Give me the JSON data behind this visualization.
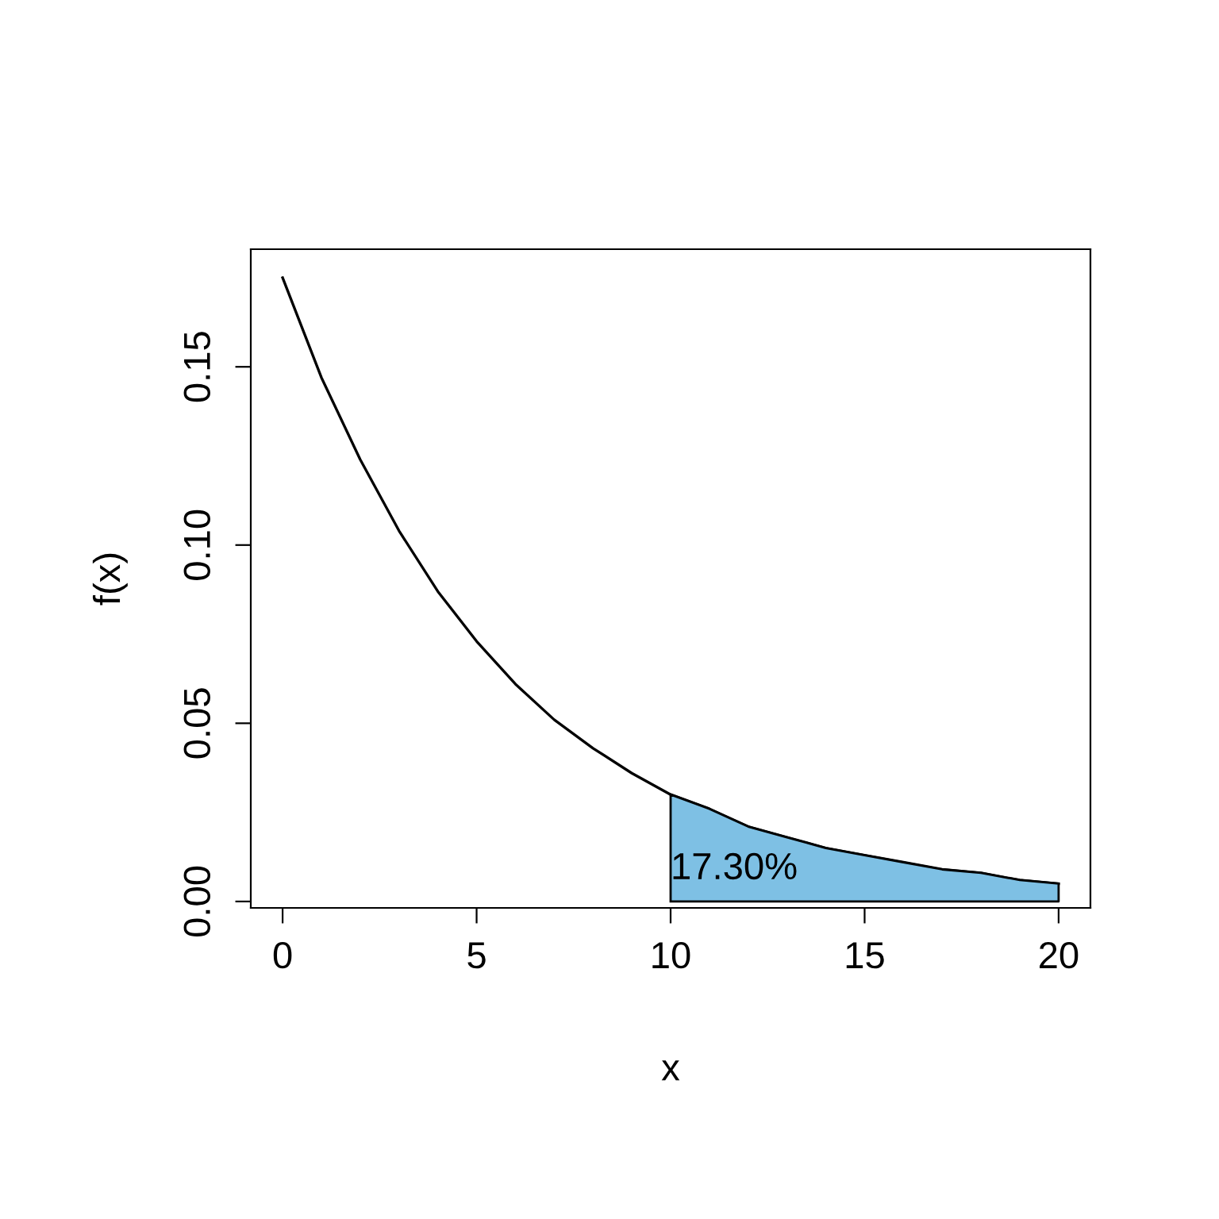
{
  "chart_data": {
    "type": "line",
    "xlabel": "x",
    "ylabel": "f(x)",
    "xlim": [
      -0.82,
      20.82
    ],
    "ylim": [
      -0.0018,
      0.183
    ],
    "xticks": [
      0,
      5,
      10,
      15,
      20
    ],
    "yticks": [
      {
        "value": 0,
        "label": "0.00"
      },
      {
        "value": 0.05,
        "label": "0.05"
      },
      {
        "value": 0.1,
        "label": "0.10"
      },
      {
        "value": 0.15,
        "label": "0.15"
      }
    ],
    "grid": false,
    "legend": false,
    "series": [
      {
        "color": "#000000",
        "x": [
          0,
          1,
          2,
          3,
          4,
          5,
          6,
          7,
          8,
          9,
          10,
          11,
          12,
          13,
          14,
          15,
          16,
          17,
          18,
          19,
          20
        ],
        "values": [
          0.175,
          0.147,
          0.124,
          0.104,
          0.087,
          0.073,
          0.061,
          0.051,
          0.043,
          0.036,
          0.03,
          0.026,
          0.021,
          0.018,
          0.015,
          0.013,
          0.011,
          0.009,
          0.008,
          0.006,
          0.005
        ]
      },
      {
        "type": "area",
        "color": "#7ec0e4",
        "x": [
          10,
          11,
          12,
          13,
          14,
          15,
          16,
          17,
          18,
          19,
          20
        ],
        "values": [
          0.03,
          0.026,
          0.021,
          0.018,
          0.015,
          0.013,
          0.011,
          0.009,
          0.008,
          0.006,
          0.005
        ]
      }
    ],
    "annotations": [
      {
        "text": "17.30%",
        "x": 10,
        "y": 0.009
      }
    ]
  }
}
